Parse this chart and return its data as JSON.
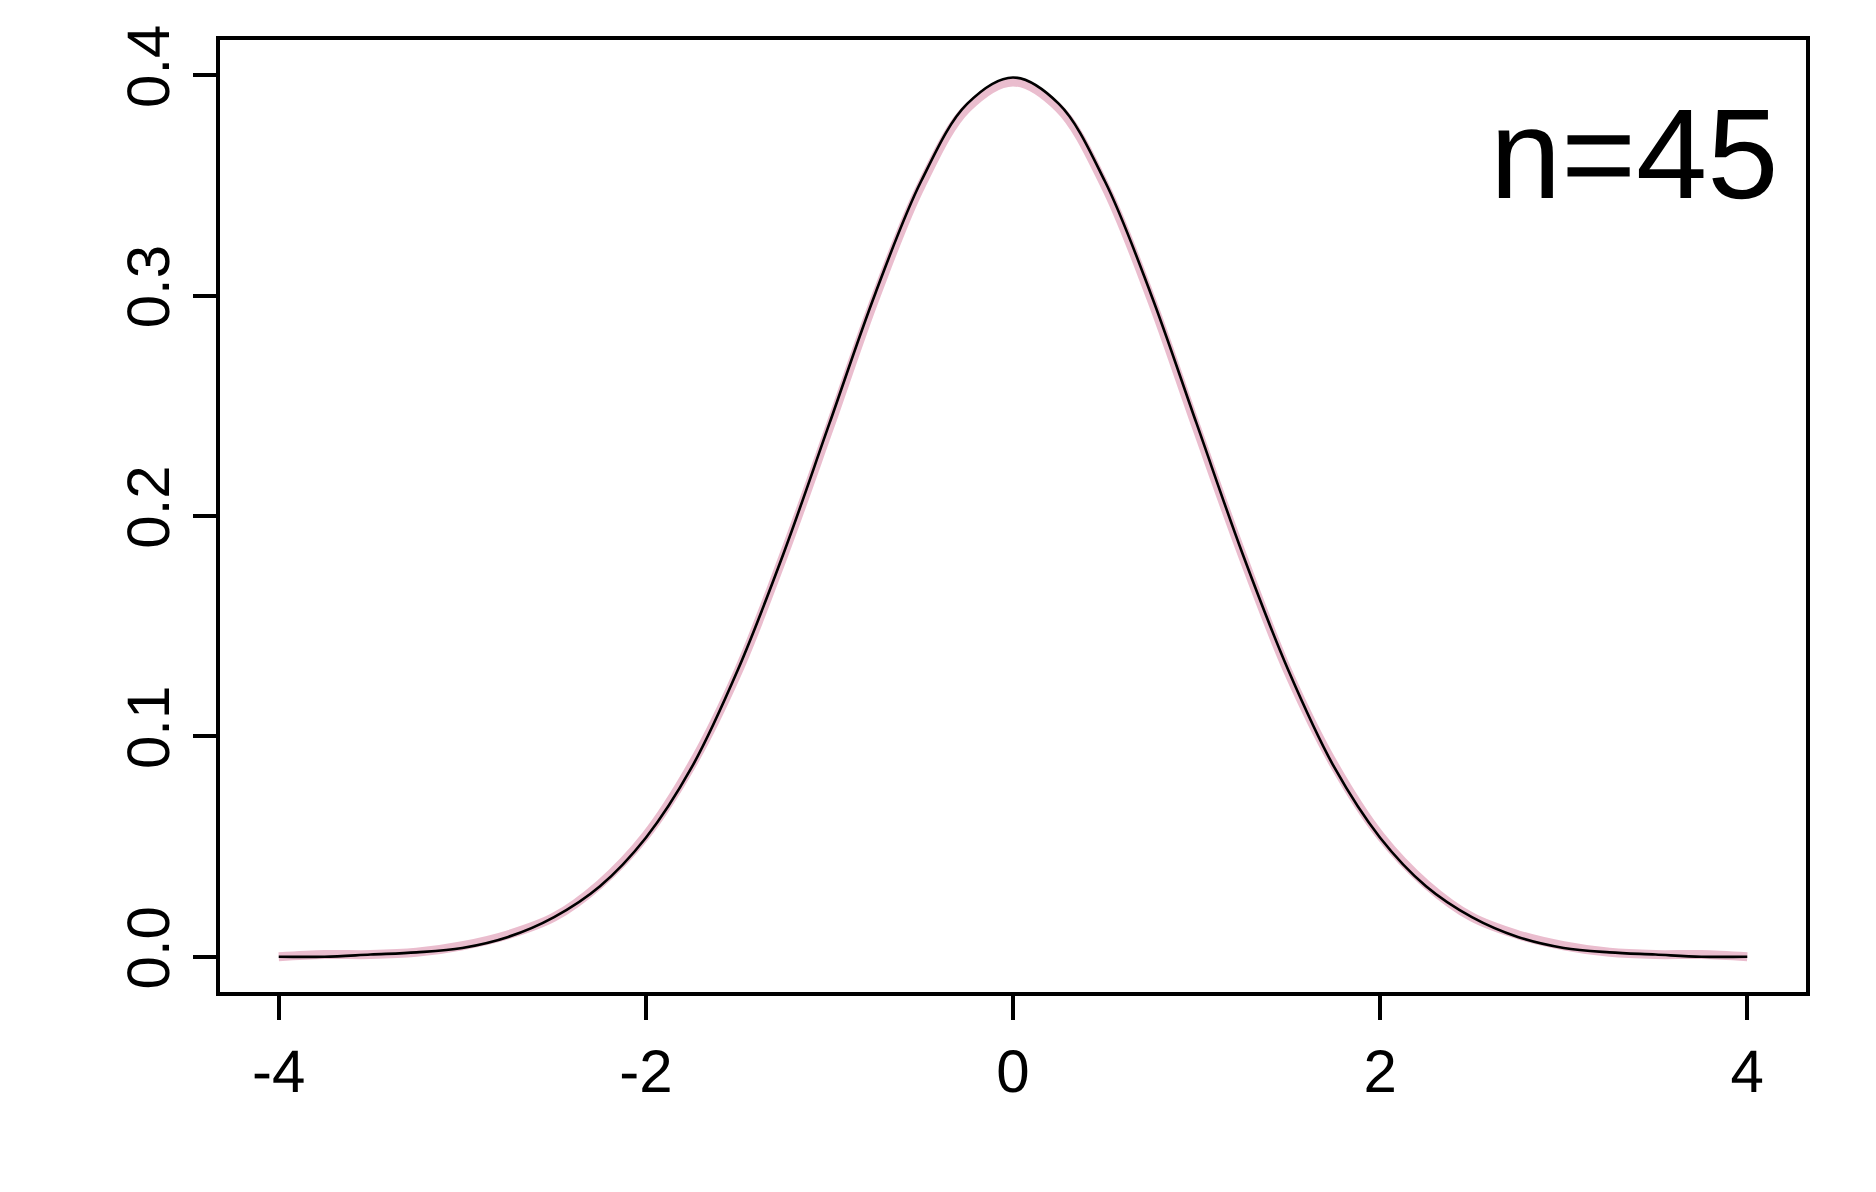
{
  "chart_data": {
    "type": "line",
    "x": [
      -4,
      -3.75,
      -3.5,
      -3.25,
      -3,
      -2.75,
      -2.5,
      -2.25,
      -2,
      -1.75,
      -1.5,
      -1.25,
      -1,
      -0.75,
      -0.5,
      -0.25,
      0,
      0.25,
      0.5,
      0.75,
      1,
      1.25,
      1.5,
      1.75,
      2,
      2.25,
      2.5,
      2.75,
      3,
      3.25,
      3.5,
      3.75,
      4
    ],
    "series": [
      {
        "color": "#000000",
        "values": [
          0.0,
          0.0,
          0.001,
          0.002,
          0.004,
          0.009,
          0.018,
          0.032,
          0.054,
          0.086,
          0.13,
          0.183,
          0.242,
          0.301,
          0.352,
          0.387,
          0.399,
          0.387,
          0.352,
          0.301,
          0.242,
          0.183,
          0.13,
          0.086,
          0.054,
          0.032,
          0.018,
          0.009,
          0.004,
          0.002,
          0.001,
          0.0,
          0.0
        ]
      },
      {
        "color": "#e8b6c9",
        "values": [
          0.0,
          0.001,
          0.001,
          0.002,
          0.005,
          0.01,
          0.018,
          0.033,
          0.055,
          0.087,
          0.129,
          0.182,
          0.24,
          0.299,
          0.35,
          0.385,
          0.397,
          0.385,
          0.35,
          0.299,
          0.24,
          0.182,
          0.129,
          0.087,
          0.055,
          0.033,
          0.018,
          0.01,
          0.005,
          0.002,
          0.001,
          0.001,
          0.0
        ]
      }
    ],
    "xlim": [
      -4.32,
      4.32
    ],
    "xticks": [
      -4,
      -2,
      0,
      2,
      4
    ],
    "ylim": [
      -0.016,
      0.416
    ],
    "yticks": [
      {
        "value": 0,
        "label": "0.0"
      },
      0.1,
      0.2,
      0.3,
      0.4
    ],
    "annotations": [
      "n=45"
    ],
    "marker": "none",
    "line_style": "solid"
  }
}
